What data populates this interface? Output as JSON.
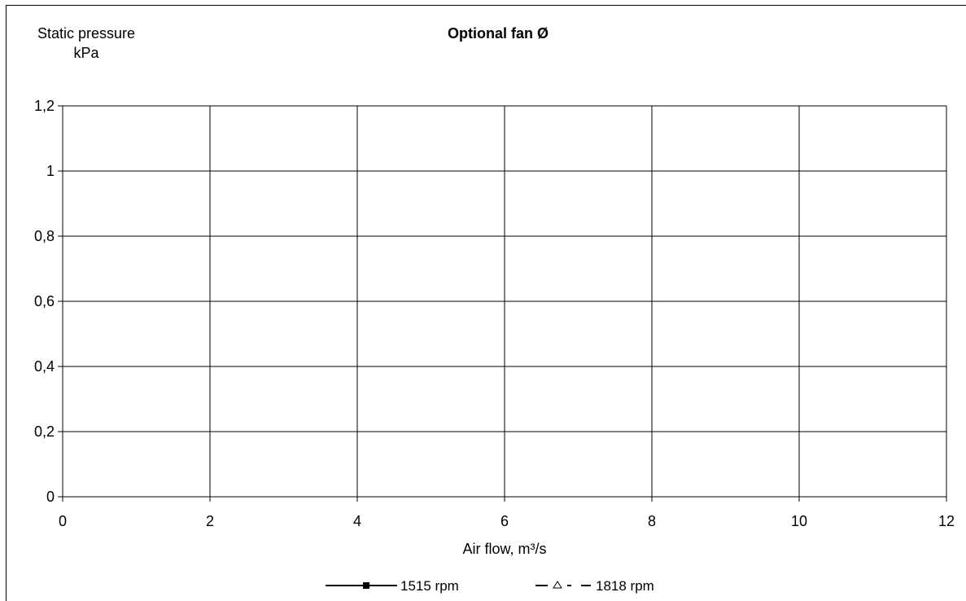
{
  "chart_data": {
    "type": "line",
    "title": "Optional fan Ø",
    "ylabel_line1": "Static pressure",
    "ylabel_line2": "kPa",
    "xlabel": "Air flow, m³/s",
    "xlim": [
      0,
      12
    ],
    "ylim": [
      0,
      1.2
    ],
    "x_ticks": [
      0,
      2,
      4,
      6,
      8,
      10,
      12
    ],
    "x_tick_labels": [
      "0",
      "2",
      "4",
      "6",
      "8",
      "10",
      "12"
    ],
    "y_ticks": [
      0,
      0.2,
      0.4,
      0.6,
      0.8,
      1.0,
      1.2
    ],
    "y_tick_labels": [
      "0",
      "0,2",
      "0,4",
      "0,6",
      "0,8",
      "1",
      "1,2"
    ],
    "grid": true,
    "legend_position": "bottom",
    "series": [
      {
        "name": "1515 rpm",
        "line": "solid",
        "marker": "filled-square",
        "color": "#000000",
        "x": [],
        "y": []
      },
      {
        "name": "1818 rpm",
        "line": "dashed",
        "marker": "open-triangle",
        "color": "#000000",
        "x": [],
        "y": []
      }
    ]
  }
}
